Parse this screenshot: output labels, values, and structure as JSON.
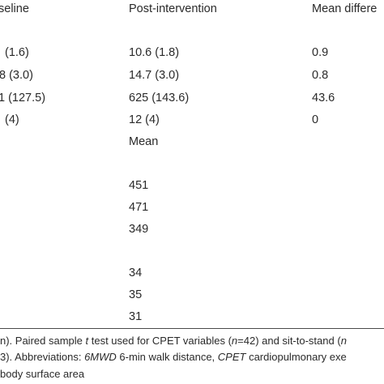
{
  "table": {
    "headers": {
      "baseline": "seline",
      "post": "Post-intervention",
      "diff": "Mean differe"
    },
    "rows": [
      {
        "baseline": "(1.6)",
        "post": "10.6 (1.8)",
        "diff": "0.9"
      },
      {
        "baseline": "8 (3.0)",
        "post": "14.7 (3.0)",
        "diff": "0.8"
      },
      {
        "baseline": "1 (127.5)",
        "post": "625 (143.6)",
        "diff": "43.6"
      },
      {
        "baseline": "(4)",
        "post": "12 (4)",
        "diff": "0"
      }
    ],
    "subheader": "Mean",
    "group1": [
      "451",
      "471",
      "349"
    ],
    "group2": [
      "34",
      "35",
      "31"
    ]
  },
  "footnote": {
    "line1_a": "n). Paired sample ",
    "line1_t": "t",
    "line1_b": " test used for CPET variables (",
    "line1_n1": "n",
    "line1_c": "=42) and sit-to-stand (",
    "line1_n2": "n",
    "line2_a": "3). Abbreviations: ",
    "line2_6mwd": "6MWD",
    "line2_b": " 6-min walk distance, ",
    "line2_cpet": "CPET",
    "line2_c": " cardiopulmonary exe",
    "line3": "body surface area"
  }
}
